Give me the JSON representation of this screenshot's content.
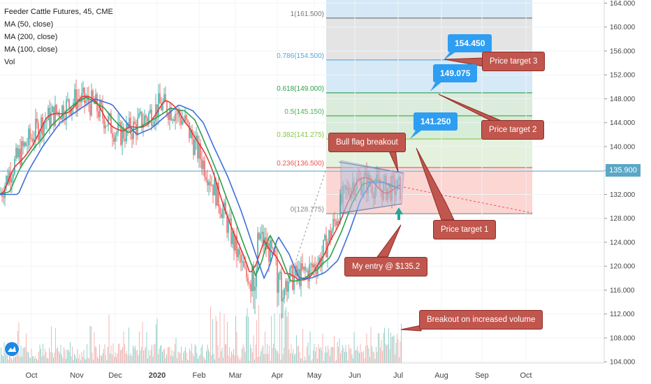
{
  "legend": {
    "title": "Feeder Cattle Futures, 45, CME",
    "ma50": "MA (50, close)",
    "ma200": "MA (200, close)",
    "ma100": "MA (100, close)",
    "vol": "Vol"
  },
  "chart_data": {
    "type": "candlestick",
    "symbol": "Feeder Cattle Futures",
    "interval": "45",
    "exchange": "CME",
    "last_price": "135.900",
    "y_ticks": [
      "164.000",
      "160.000",
      "156.000",
      "152.000",
      "148.000",
      "144.000",
      "140.000",
      "136.000",
      "132.000",
      "128.000",
      "124.000",
      "120.000",
      "116.000",
      "112.000",
      "108.000",
      "104.000"
    ],
    "ylim": [
      104,
      164
    ],
    "x_ticks": [
      "Oct",
      "Nov",
      "Dec",
      "2020",
      "Feb",
      "Mar",
      "Apr",
      "May",
      "Jun",
      "Jul",
      "Aug",
      "Sep",
      "Oct"
    ],
    "fib_levels": [
      {
        "ratio": "1",
        "price": "161.500",
        "label": "1(161.500)"
      },
      {
        "ratio": "0.786",
        "price": "154.500",
        "label": "0.786(154.500)"
      },
      {
        "ratio": "0.618",
        "price": "149.000",
        "label": "0.618(149.000)"
      },
      {
        "ratio": "0.5",
        "price": "145.150",
        "label": "0.5(145.150)"
      },
      {
        "ratio": "0.382",
        "price": "141.275",
        "label": "0.382(141.275)"
      },
      {
        "ratio": "0.236",
        "price": "136.500",
        "label": "0.236(136.500)"
      },
      {
        "ratio": "0",
        "price": "128.775",
        "label": "0(128.775)"
      }
    ],
    "price_tags": [
      "154.450",
      "149.075",
      "141.250"
    ],
    "annotations": {
      "bull_flag": "Bull flag breakout",
      "target1": "Price target 1",
      "target2": "Price target 2",
      "target3": "Price target 3",
      "entry": "My entry @ $135.2",
      "volume": "Breakout on increased volume"
    },
    "colors": {
      "up": "#26a69a",
      "down": "#ef5350",
      "ma50": "#e53935",
      "ma100": "#2e9e4f",
      "ma200": "#3d6fdc"
    },
    "ma_path": [
      [
        0,
        132
      ],
      [
        15,
        136
      ],
      [
        35,
        140
      ],
      [
        60,
        144
      ],
      [
        85,
        146
      ],
      [
        110,
        148
      ],
      [
        135,
        147
      ],
      [
        155,
        144
      ],
      [
        170,
        142
      ],
      [
        190,
        143
      ],
      [
        210,
        145
      ],
      [
        230,
        147
      ],
      [
        250,
        146
      ],
      [
        265,
        144
      ],
      [
        280,
        140
      ],
      [
        300,
        135
      ],
      [
        320,
        129
      ],
      [
        340,
        122
      ],
      [
        352,
        118
      ],
      [
        360,
        120
      ],
      [
        372,
        125
      ],
      [
        388,
        122
      ],
      [
        402,
        118
      ],
      [
        420,
        118
      ],
      [
        440,
        119
      ],
      [
        458,
        121
      ],
      [
        475,
        126
      ],
      [
        490,
        131
      ],
      [
        505,
        134
      ],
      [
        525,
        134
      ],
      [
        545,
        133
      ],
      [
        570,
        133
      ]
    ]
  }
}
